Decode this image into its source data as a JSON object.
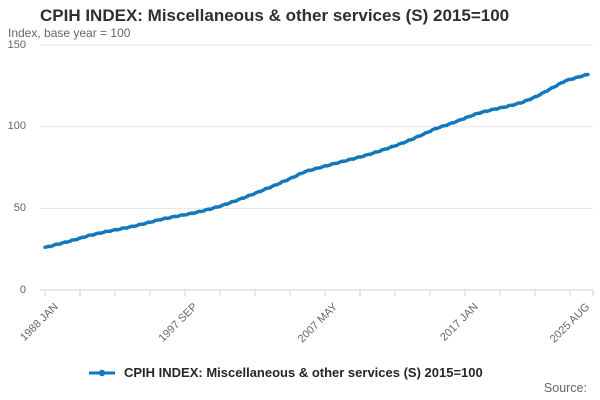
{
  "header": {
    "title": "CPIH INDEX: Miscellaneous & other services (S) 2015=100",
    "subtitle": "Index, base year = 100"
  },
  "legend": {
    "label": "CPIH INDEX: Miscellaneous & other services (S) 2015=100"
  },
  "source": {
    "label": "Source:"
  },
  "chart_data": {
    "type": "line",
    "title": "CPIH INDEX: Miscellaneous & other services (S) 2015=100",
    "ylabel": "Index, base year = 100",
    "xlabel": "",
    "ylim": [
      0,
      150
    ],
    "y_ticks": [
      0,
      50,
      100,
      150
    ],
    "x_tick_labels": [
      "1988 JAN",
      "1997 SEP",
      "2007 MAY",
      "2017 JAN",
      "2025 AUG"
    ],
    "grid": "horizontal",
    "legend_position": "bottom-center",
    "line_color": "#1178be",
    "grid_color": "#e6e6e6",
    "axis_color": "#c9d4e3",
    "series": [
      {
        "name": "CPIH INDEX: Miscellaneous & other services (S) 2015=100",
        "frequency": "monthly",
        "x_start": "1988 JAN",
        "x_end": "2025 AUG",
        "sample_years": [
          1988,
          1989,
          1990,
          1991,
          1992,
          1993,
          1994,
          1995,
          1996,
          1997,
          1998,
          1999,
          2000,
          2001,
          2002,
          2003,
          2004,
          2005,
          2006,
          2007,
          2008,
          2009,
          2010,
          2011,
          2012,
          2013,
          2014,
          2015,
          2016,
          2017,
          2018,
          2019,
          2020,
          2021,
          2022,
          2023,
          2024,
          2025
        ],
        "january_values": [
          26.0,
          28.3,
          30.6,
          33.2,
          35.3,
          37.0,
          38.8,
          40.9,
          43.2,
          45.0,
          46.6,
          48.6,
          51.0,
          54.0,
          57.3,
          60.8,
          64.4,
          68.3,
          72.5,
          74.9,
          77.3,
          79.6,
          81.9,
          84.6,
          87.6,
          90.8,
          94.6,
          98.7,
          101.6,
          105.0,
          108.3,
          110.5,
          112.4,
          114.8,
          118.4,
          123.2,
          128.0,
          130.6
        ],
        "final_value_2025_aug": 132.0
      }
    ]
  }
}
